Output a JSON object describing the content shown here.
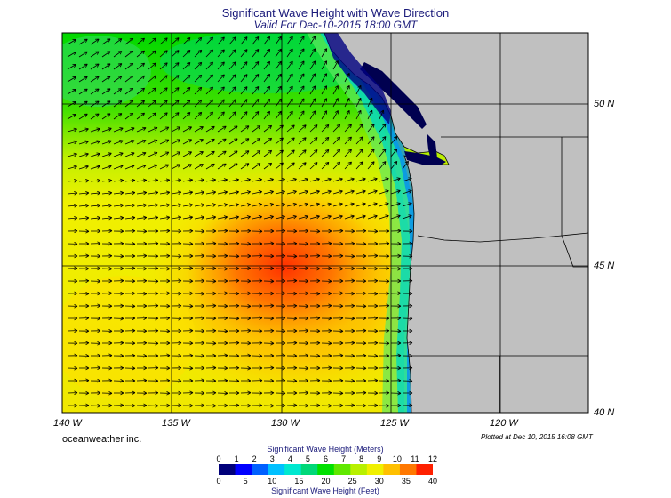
{
  "title": "Significant Wave Height with Wave Direction",
  "subtitle": "Valid For Dec-10-2015 18:00 GMT",
  "credit": "oceanweather inc.",
  "plotted": "Plotted at Dec 10, 2015 16:08 GMT",
  "lon_labels": [
    "140 W",
    "135 W",
    "130 W",
    "125 W",
    "120 W"
  ],
  "lat_labels": [
    "50 N",
    "45 N",
    "40 N"
  ],
  "colorbar": {
    "title_top": "Significant Wave Height (Meters)",
    "title_bottom": "Significant Wave Height (Feet)",
    "meters": [
      "0",
      "1",
      "2",
      "3",
      "4",
      "5",
      "6",
      "7",
      "8",
      "9",
      "10",
      "11",
      "12"
    ],
    "feet": [
      "0",
      "5",
      "10",
      "15",
      "20",
      "25",
      "30",
      "35",
      "40"
    ],
    "colors": [
      "#00007a",
      "#0000ff",
      "#0060ff",
      "#00c0ff",
      "#00e8d0",
      "#00d878",
      "#00e000",
      "#60e800",
      "#b8f000",
      "#f0f000",
      "#ffc000",
      "#ff7800",
      "#ff2000"
    ]
  },
  "colors": {
    "land": "#c0c0c0",
    "title": "#1a1a7a",
    "arrow": "#000000"
  },
  "chart_data": {
    "type": "heatmap",
    "title": "Significant Wave Height with Wave Direction",
    "xlabel": "",
    "ylabel": "",
    "x_range": [
      -140,
      -120
    ],
    "y_range": [
      40,
      52
    ],
    "units": "m",
    "field_peak": {
      "lon": -130,
      "lat": 45.5,
      "value": 11.5
    },
    "arrow_direction": "toward east / north-east"
  }
}
